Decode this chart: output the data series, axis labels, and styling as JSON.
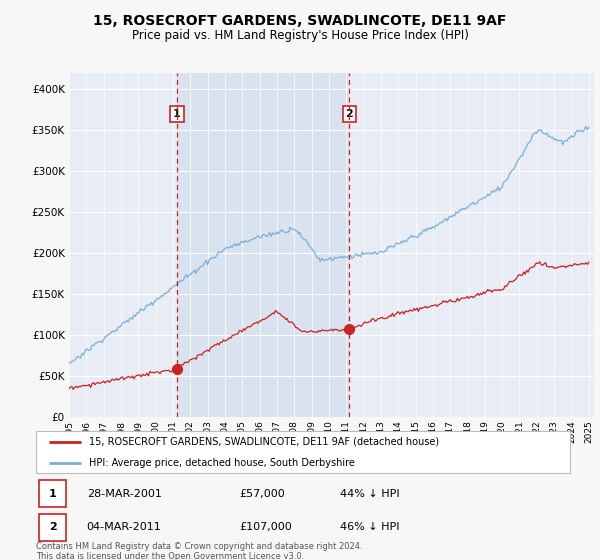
{
  "title": "15, ROSECROFT GARDENS, SWADLINCOTE, DE11 9AF",
  "subtitle": "Price paid vs. HM Land Registry's House Price Index (HPI)",
  "background_color": "#f7f7f7",
  "plot_background": "#e8edf5",
  "plot_highlight": "#dde5f0",
  "legend_label_red": "15, ROSECROFT GARDENS, SWADLINCOTE, DE11 9AF (detached house)",
  "legend_label_blue": "HPI: Average price, detached house, South Derbyshire",
  "transaction1_label": "28-MAR-2001",
  "transaction1_price": "£57,000",
  "transaction1_hpi": "44% ↓ HPI",
  "transaction2_label": "04-MAR-2011",
  "transaction2_price": "£107,000",
  "transaction2_hpi": "46% ↓ HPI",
  "footnote": "Contains HM Land Registry data © Crown copyright and database right 2024.\nThis data is licensed under the Open Government Licence v3.0.",
  "ylim": [
    0,
    420000
  ],
  "x_start_year": 1995,
  "x_end_year": 2025,
  "transaction1_year": 2001.23,
  "transaction2_year": 2011.17,
  "red_color": "#cc2222",
  "blue_color": "#7aaedb",
  "vline_color": "#cc2222",
  "title_fontsize": 10,
  "subtitle_fontsize": 8.5
}
